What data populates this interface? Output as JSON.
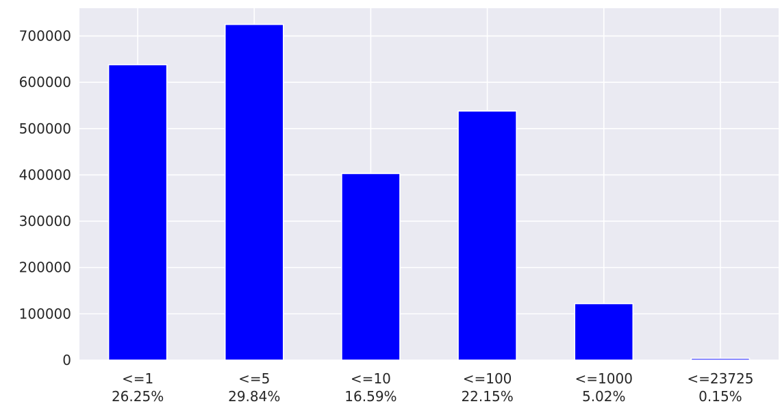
{
  "chart_data": {
    "type": "bar",
    "categories": [
      [
        "<=1",
        "26.25%"
      ],
      [
        "<=5",
        "29.84%"
      ],
      [
        "<=10",
        "16.59%"
      ],
      [
        "<=100",
        "22.15%"
      ],
      [
        "<=1000",
        "5.02%"
      ],
      [
        "<=23725",
        "0.15%"
      ]
    ],
    "values": [
      638000,
      725000,
      403000,
      538000,
      122000,
      3700
    ],
    "ylim": [
      0,
      760000
    ],
    "yticks": [
      0,
      100000,
      200000,
      300000,
      400000,
      500000,
      600000,
      700000
    ],
    "title": "",
    "xlabel": "",
    "ylabel": "",
    "grid": true,
    "style": {
      "bar_color": "#0000ff",
      "bar_edge_color": "#ffffff",
      "background": "#eaeaf2",
      "grid_color": "#ffffff"
    }
  }
}
